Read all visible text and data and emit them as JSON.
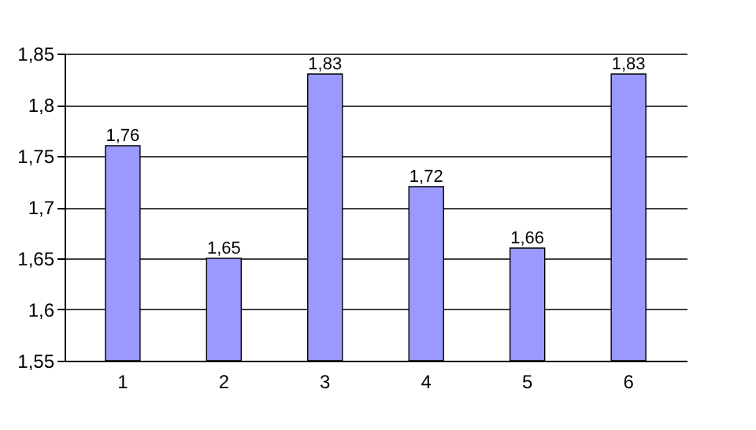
{
  "chart_data": {
    "type": "bar",
    "categories": [
      "1",
      "2",
      "3",
      "4",
      "5",
      "6"
    ],
    "values": [
      1.76,
      1.65,
      1.83,
      1.72,
      1.66,
      1.83
    ],
    "value_labels": [
      "1,76",
      "1,65",
      "1,83",
      "1,72",
      "1,66",
      "1,83"
    ],
    "color": "#9999ff",
    "ylim": [
      1.55,
      1.85
    ],
    "yticks": [
      {
        "value": 1.55,
        "label": "1,55"
      },
      {
        "value": 1.6,
        "label": "1,6"
      },
      {
        "value": 1.65,
        "label": "1,65"
      },
      {
        "value": 1.7,
        "label": "1,7"
      },
      {
        "value": 1.75,
        "label": "1,75"
      },
      {
        "value": 1.8,
        "label": "1,8"
      },
      {
        "value": 1.85,
        "label": "1,85"
      }
    ],
    "grid": "y"
  }
}
